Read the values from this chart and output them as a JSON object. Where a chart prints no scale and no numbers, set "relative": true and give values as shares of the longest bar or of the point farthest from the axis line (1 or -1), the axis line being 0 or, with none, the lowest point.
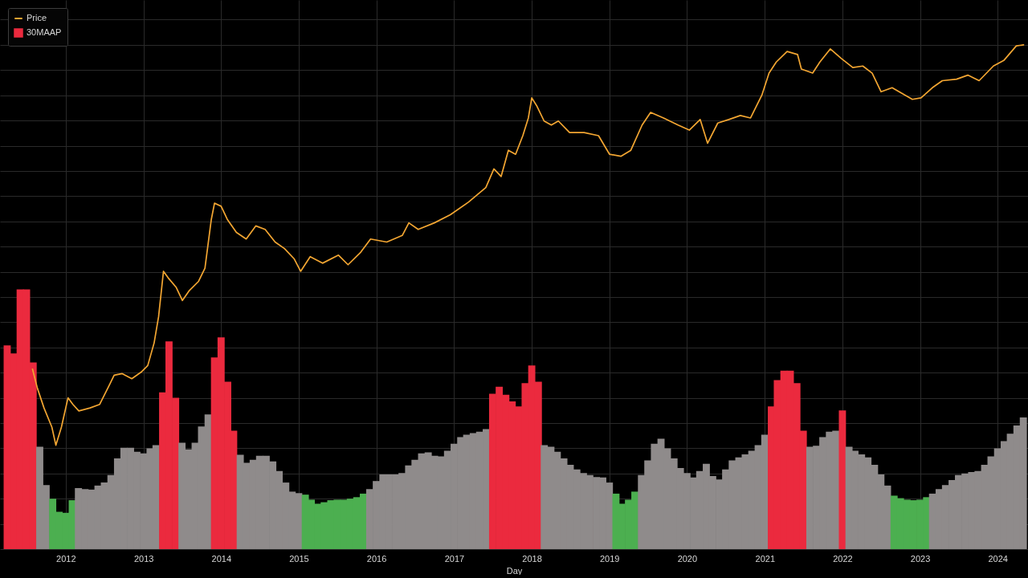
{
  "chart_data": {
    "type": "line",
    "xlabel": "Day",
    "relative": true,
    "grid": true,
    "legend": "top left",
    "xlim": [
      "2011-03-17",
      "2024-05-04"
    ],
    "xticks": [
      "2012",
      "2013",
      "2014",
      "2015",
      "2016",
      "2017",
      "2018",
      "2019",
      "2020",
      "2021",
      "2022",
      "2023",
      "2024"
    ],
    "series": [
      {
        "name": "Price",
        "color": "#f3a632",
        "x": [
          "2011-07-29",
          "2011-08-21",
          "2011-09-21",
          "2011-10-28",
          "2011-11-16",
          "2011-12-12",
          "2012-01-12",
          "2012-02-04",
          "2012-03-03",
          "2012-04-25",
          "2012-06-09",
          "2012-07-24",
          "2012-08-16",
          "2012-09-23",
          "2012-11-07",
          "2012-12-21",
          "2013-01-21",
          "2013-02-20",
          "2013-03-13",
          "2013-04-05",
          "2013-04-27",
          "2013-06-04",
          "2013-07-03",
          "2013-08-03",
          "2013-09-17",
          "2013-10-17",
          "2013-11-16",
          "2013-12-01",
          "2014-01-01",
          "2014-01-30",
          "2014-03-14",
          "2014-04-29",
          "2014-06-13",
          "2014-07-27",
          "2014-09-12",
          "2014-10-26",
          "2014-12-10",
          "2015-01-10",
          "2015-02-24",
          "2015-04-23",
          "2015-07-07",
          "2015-08-21",
          "2015-10-20",
          "2015-12-05",
          "2016-02-19",
          "2016-05-02",
          "2016-06-02",
          "2016-07-16",
          "2016-09-30",
          "2016-12-14",
          "2017-03-09",
          "2017-05-30",
          "2017-07-07",
          "2017-08-10",
          "2017-09-13",
          "2017-10-17",
          "2017-11-20",
          "2017-12-16",
          "2018-01-01",
          "2018-01-26",
          "2018-02-28",
          "2018-04-03",
          "2018-05-06",
          "2018-06-28",
          "2018-09-04",
          "2018-11-11",
          "2019-01-02",
          "2019-02-24",
          "2019-04-12",
          "2019-06-04",
          "2019-07-14",
          "2019-09-13",
          "2019-11-20",
          "2020-01-12",
          "2020-03-03",
          "2020-04-07",
          "2020-05-25",
          "2020-07-16",
          "2020-09-08",
          "2020-10-26",
          "2020-12-18",
          "2021-01-21",
          "2021-02-24",
          "2021-04-16",
          "2021-06-04",
          "2021-06-22",
          "2021-08-14",
          "2021-09-17",
          "2021-11-05",
          "2021-12-27",
          "2022-02-19",
          "2022-04-07",
          "2022-05-21",
          "2022-07-02",
          "2022-08-23",
          "2022-10-11",
          "2022-11-26",
          "2023-01-06",
          "2023-02-28",
          "2023-04-16",
          "2023-06-22",
          "2023-08-14",
          "2023-10-06",
          "2023-12-12",
          "2024-01-30",
          "2024-03-29",
          "2024-05-02"
        ],
        "values": [
          0.357,
          0.319,
          0.28,
          0.242,
          0.206,
          0.242,
          0.3,
          0.287,
          0.274,
          0.28,
          0.287,
          0.325,
          0.345,
          0.348,
          0.338,
          0.351,
          0.364,
          0.409,
          0.461,
          0.551,
          0.538,
          0.519,
          0.493,
          0.512,
          0.531,
          0.557,
          0.654,
          0.686,
          0.68,
          0.654,
          0.628,
          0.615,
          0.641,
          0.634,
          0.609,
          0.596,
          0.576,
          0.551,
          0.58,
          0.567,
          0.583,
          0.564,
          0.589,
          0.615,
          0.609,
          0.622,
          0.647,
          0.634,
          0.647,
          0.663,
          0.688,
          0.717,
          0.754,
          0.739,
          0.791,
          0.783,
          0.82,
          0.855,
          0.895,
          0.878,
          0.849,
          0.841,
          0.849,
          0.826,
          0.826,
          0.82,
          0.783,
          0.779,
          0.791,
          0.841,
          0.866,
          0.855,
          0.841,
          0.831,
          0.852,
          0.805,
          0.845,
          0.852,
          0.86,
          0.855,
          0.9,
          0.944,
          0.966,
          0.987,
          0.981,
          0.952,
          0.944,
          0.966,
          0.992,
          0.973,
          0.955,
          0.958,
          0.944,
          0.907,
          0.915,
          0.903,
          0.892,
          0.895,
          0.915,
          0.929,
          0.932,
          0.94,
          0.929,
          0.958,
          0.969,
          0.998,
          1.0
        ]
      },
      {
        "name": "30MAAP",
        "type": "bar",
        "x": [
          "2011-04",
          "2011-05",
          "2011-06",
          "2011-07",
          "2011-08",
          "2011-09",
          "2011-10",
          "2011-11",
          "2011-12",
          "2012-01",
          "2012-02",
          "2012-03",
          "2012-04",
          "2012-05",
          "2012-06",
          "2012-07",
          "2012-08",
          "2012-09",
          "2012-10",
          "2012-11",
          "2012-12",
          "2013-01",
          "2013-02",
          "2013-03",
          "2013-04",
          "2013-05",
          "2013-06",
          "2013-07",
          "2013-08",
          "2013-09",
          "2013-10",
          "2013-11",
          "2013-12",
          "2014-01",
          "2014-02",
          "2014-03",
          "2014-04",
          "2014-05",
          "2014-06",
          "2014-07",
          "2014-08",
          "2014-09",
          "2014-10",
          "2014-11",
          "2014-12",
          "2015-01",
          "2015-02",
          "2015-03",
          "2015-04",
          "2015-05",
          "2015-06",
          "2015-07",
          "2015-08",
          "2015-09",
          "2015-10",
          "2015-11",
          "2015-12",
          "2016-01",
          "2016-02",
          "2016-03",
          "2016-04",
          "2016-05",
          "2016-06",
          "2016-07",
          "2016-08",
          "2016-09",
          "2016-10",
          "2016-11",
          "2016-12",
          "2017-01",
          "2017-02",
          "2017-03",
          "2017-04",
          "2017-05",
          "2017-06",
          "2017-07",
          "2017-08",
          "2017-09",
          "2017-10",
          "2017-11",
          "2017-12",
          "2018-01",
          "2018-02",
          "2018-03",
          "2018-04",
          "2018-05",
          "2018-06",
          "2018-07",
          "2018-08",
          "2018-09",
          "2018-10",
          "2018-11",
          "2018-12",
          "2019-01",
          "2019-02",
          "2019-03",
          "2019-04",
          "2019-05",
          "2019-06",
          "2019-07",
          "2019-08",
          "2019-09",
          "2019-10",
          "2019-11",
          "2019-12",
          "2020-01",
          "2020-02",
          "2020-03",
          "2020-04",
          "2020-05",
          "2020-06",
          "2020-07",
          "2020-08",
          "2020-09",
          "2020-10",
          "2020-11",
          "2020-12",
          "2021-01",
          "2021-02",
          "2021-03",
          "2021-04",
          "2021-05",
          "2021-06",
          "2021-07",
          "2021-08",
          "2021-09",
          "2021-10",
          "2021-11",
          "2021-12",
          "2022-01",
          "2022-02",
          "2022-03",
          "2022-04",
          "2022-05",
          "2022-06",
          "2022-07",
          "2022-08",
          "2022-09",
          "2022-10",
          "2022-11",
          "2022-12",
          "2023-01",
          "2023-02",
          "2023-03",
          "2023-04",
          "2023-05",
          "2023-06",
          "2023-07",
          "2023-08",
          "2023-09",
          "2023-10",
          "2023-11",
          "2023-12",
          "2024-01",
          "2024-02",
          "2024-03",
          "2024-04",
          "2024-05"
        ],
        "values": [
          0.404,
          0.388,
          0.515,
          0.515,
          0.37,
          0.203,
          0.127,
          0.1,
          0.074,
          0.072,
          0.097,
          0.121,
          0.119,
          0.118,
          0.126,
          0.132,
          0.147,
          0.18,
          0.201,
          0.201,
          0.193,
          0.19,
          0.2,
          0.206,
          0.311,
          0.412,
          0.3,
          0.211,
          0.198,
          0.211,
          0.243,
          0.267,
          0.38,
          0.42,
          0.332,
          0.235,
          0.187,
          0.171,
          0.177,
          0.185,
          0.185,
          0.174,
          0.155,
          0.132,
          0.114,
          0.111,
          0.108,
          0.098,
          0.09,
          0.093,
          0.097,
          0.098,
          0.098,
          0.1,
          0.103,
          0.11,
          0.119,
          0.135,
          0.148,
          0.148,
          0.148,
          0.151,
          0.166,
          0.177,
          0.19,
          0.192,
          0.185,
          0.184,
          0.195,
          0.209,
          0.222,
          0.227,
          0.23,
          0.233,
          0.238,
          0.308,
          0.322,
          0.306,
          0.293,
          0.283,
          0.329,
          0.364,
          0.332,
          0.206,
          0.203,
          0.193,
          0.18,
          0.167,
          0.158,
          0.151,
          0.147,
          0.143,
          0.142,
          0.132,
          0.11,
          0.09,
          0.098,
          0.114,
          0.147,
          0.176,
          0.209,
          0.219,
          0.2,
          0.18,
          0.161,
          0.151,
          0.142,
          0.155,
          0.169,
          0.145,
          0.138,
          0.158,
          0.176,
          0.182,
          0.188,
          0.195,
          0.206,
          0.227,
          0.283,
          0.335,
          0.354,
          0.354,
          0.329,
          0.235,
          0.203,
          0.205,
          0.222,
          0.233,
          0.235,
          0.275,
          0.203,
          0.195,
          0.188,
          0.182,
          0.167,
          0.148,
          0.126,
          0.106,
          0.101,
          0.098,
          0.097,
          0.098,
          0.103,
          0.11,
          0.119,
          0.127,
          0.137,
          0.147,
          0.15,
          0.153,
          0.155,
          0.167,
          0.184,
          0.2,
          0.214,
          0.229,
          0.245,
          0.261
        ],
        "colors": [
          "#eb2a3e",
          "#eb2a3e",
          "#eb2a3e",
          "#eb2a3e",
          "#eb2a3e",
          "#8f8b8b",
          "#8f8b8b",
          "#4caf50",
          "#4caf50",
          "#4caf50",
          "#4caf50",
          "#8f8b8b",
          "#8f8b8b",
          "#8f8b8b",
          "#8f8b8b",
          "#8f8b8b",
          "#8f8b8b",
          "#8f8b8b",
          "#8f8b8b",
          "#8f8b8b",
          "#8f8b8b",
          "#8f8b8b",
          "#8f8b8b",
          "#8f8b8b",
          "#eb2a3e",
          "#eb2a3e",
          "#eb2a3e",
          "#8f8b8b",
          "#8f8b8b",
          "#8f8b8b",
          "#8f8b8b",
          "#8f8b8b",
          "#eb2a3e",
          "#eb2a3e",
          "#eb2a3e",
          "#eb2a3e",
          "#8f8b8b",
          "#8f8b8b",
          "#8f8b8b",
          "#8f8b8b",
          "#8f8b8b",
          "#8f8b8b",
          "#8f8b8b",
          "#8f8b8b",
          "#8f8b8b",
          "#8f8b8b",
          "#4caf50",
          "#4caf50",
          "#4caf50",
          "#4caf50",
          "#4caf50",
          "#4caf50",
          "#4caf50",
          "#4caf50",
          "#4caf50",
          "#4caf50",
          "#8f8b8b",
          "#8f8b8b",
          "#8f8b8b",
          "#8f8b8b",
          "#8f8b8b",
          "#8f8b8b",
          "#8f8b8b",
          "#8f8b8b",
          "#8f8b8b",
          "#8f8b8b",
          "#8f8b8b",
          "#8f8b8b",
          "#8f8b8b",
          "#8f8b8b",
          "#8f8b8b",
          "#8f8b8b",
          "#8f8b8b",
          "#8f8b8b",
          "#8f8b8b",
          "#eb2a3e",
          "#eb2a3e",
          "#eb2a3e",
          "#eb2a3e",
          "#eb2a3e",
          "#eb2a3e",
          "#eb2a3e",
          "#eb2a3e",
          "#8f8b8b",
          "#8f8b8b",
          "#8f8b8b",
          "#8f8b8b",
          "#8f8b8b",
          "#8f8b8b",
          "#8f8b8b",
          "#8f8b8b",
          "#8f8b8b",
          "#8f8b8b",
          "#8f8b8b",
          "#4caf50",
          "#4caf50",
          "#4caf50",
          "#4caf50",
          "#8f8b8b",
          "#8f8b8b",
          "#8f8b8b",
          "#8f8b8b",
          "#8f8b8b",
          "#8f8b8b",
          "#8f8b8b",
          "#8f8b8b",
          "#8f8b8b",
          "#8f8b8b",
          "#8f8b8b",
          "#8f8b8b",
          "#8f8b8b",
          "#8f8b8b",
          "#8f8b8b",
          "#8f8b8b",
          "#8f8b8b",
          "#8f8b8b",
          "#8f8b8b",
          "#8f8b8b",
          "#eb2a3e",
          "#eb2a3e",
          "#eb2a3e",
          "#eb2a3e",
          "#eb2a3e",
          "#eb2a3e",
          "#8f8b8b",
          "#8f8b8b",
          "#8f8b8b",
          "#8f8b8b",
          "#8f8b8b",
          "#eb2a3e",
          "#8f8b8b",
          "#8f8b8b",
          "#8f8b8b",
          "#8f8b8b",
          "#8f8b8b",
          "#8f8b8b",
          "#8f8b8b",
          "#4caf50",
          "#4caf50",
          "#4caf50",
          "#4caf50",
          "#4caf50",
          "#4caf50",
          "#8f8b8b",
          "#8f8b8b",
          "#8f8b8b",
          "#8f8b8b",
          "#8f8b8b",
          "#8f8b8b",
          "#8f8b8b",
          "#8f8b8b",
          "#8f8b8b",
          "#8f8b8b",
          "#8f8b8b",
          "#8f8b8b",
          "#8f8b8b",
          "#8f8b8b",
          "#8f8b8b"
        ]
      }
    ]
  }
}
